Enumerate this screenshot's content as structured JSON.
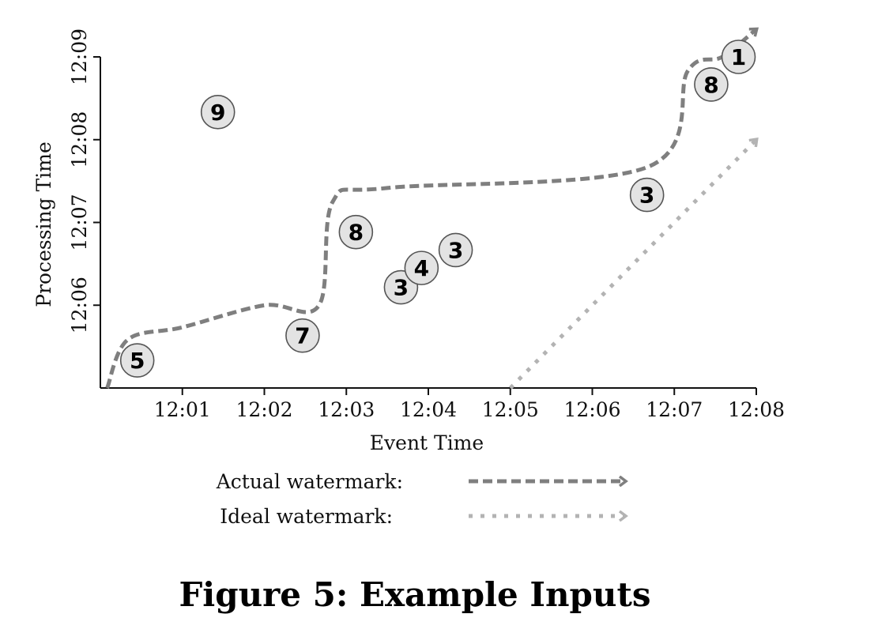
{
  "chart_data": {
    "type": "scatter",
    "title": "",
    "xlabel": "Event Time",
    "ylabel": "Processing Time",
    "xlim": [
      "12:00",
      "12:08"
    ],
    "ylim": [
      "12:05",
      "12:09"
    ],
    "x_ticks": [
      "12:01",
      "12:02",
      "12:03",
      "12:04",
      "12:05",
      "12:06",
      "12:07",
      "12:08"
    ],
    "y_ticks": [
      "12:06",
      "12:07",
      "12:08",
      "12:09"
    ],
    "grid": false,
    "points": [
      {
        "label": "5",
        "x": "12:00:27",
        "y": "12:05:20"
      },
      {
        "label": "9",
        "x": "12:01:26",
        "y": "12:08:20"
      },
      {
        "label": "7",
        "x": "12:02:28",
        "y": "12:05:38"
      },
      {
        "label": "8",
        "x": "12:03:07",
        "y": "12:06:53"
      },
      {
        "label": "3",
        "x": "12:03:40",
        "y": "12:06:13"
      },
      {
        "label": "4",
        "x": "12:03:55",
        "y": "12:06:27"
      },
      {
        "label": "3",
        "x": "12:04:20",
        "y": "12:06:40"
      },
      {
        "label": "3",
        "x": "12:06:40",
        "y": "12:07:20"
      },
      {
        "label": "8",
        "x": "12:07:27",
        "y": "12:08:40"
      },
      {
        "label": "1",
        "x": "12:07:47",
        "y": "12:09:00"
      }
    ],
    "series": [
      {
        "name": "Actual watermark:",
        "style": "dashed",
        "color": "#7f7f7f",
        "points": [
          {
            "x": "12:00:05",
            "y": "12:05:00"
          },
          {
            "x": "12:00:20",
            "y": "12:05:35"
          },
          {
            "x": "12:01:00",
            "y": "12:05:44"
          },
          {
            "x": "12:02:00",
            "y": "12:06:00"
          },
          {
            "x": "12:02:40",
            "y": "12:06:00"
          },
          {
            "x": "12:02:50",
            "y": "12:07:15"
          },
          {
            "x": "12:03:30",
            "y": "12:07:25"
          },
          {
            "x": "12:06:40",
            "y": "12:07:40"
          },
          {
            "x": "12:07:10",
            "y": "12:08:50"
          },
          {
            "x": "12:07:35",
            "y": "12:09:00"
          },
          {
            "x": "12:08:00",
            "y": "12:09:20"
          }
        ]
      },
      {
        "name": "Ideal watermark:",
        "style": "dotted",
        "color": "#b3b3b3",
        "points": [
          {
            "x": "12:05:00",
            "y": "12:05:00"
          },
          {
            "x": "12:08:00",
            "y": "12:08:00"
          }
        ]
      }
    ]
  },
  "caption": "Figure 5: Example Inputs"
}
